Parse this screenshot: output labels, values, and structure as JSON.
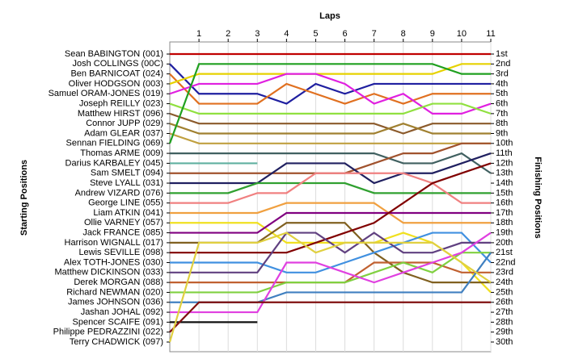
{
  "chart_data": {
    "type": "lap",
    "x_label": "Laps",
    "y_label": "Starting Positions",
    "y2_label": "Finishing Positions",
    "x": [
      0,
      1,
      2,
      3,
      4,
      5,
      6,
      7,
      8,
      9,
      10,
      11
    ],
    "xlim": [
      0,
      11
    ],
    "xticks": [
      1,
      2,
      3,
      4,
      5,
      6,
      7,
      8,
      9,
      10,
      11
    ],
    "ylim": [
      1,
      30
    ],
    "reverse_y": true,
    "grid": true,
    "yticks": [
      {
        "value": 1,
        "label": "1st"
      },
      {
        "value": 2,
        "label": "2nd"
      },
      {
        "value": 3,
        "label": "3rd"
      },
      {
        "value": 4,
        "label": "4th"
      },
      {
        "value": 5,
        "label": "5th"
      },
      {
        "value": 6,
        "label": "6th"
      },
      {
        "value": 7,
        "label": "7th"
      },
      {
        "value": 8,
        "label": "8th"
      },
      {
        "value": 9,
        "label": "9th"
      },
      {
        "value": 10,
        "label": "10th"
      },
      {
        "value": 11,
        "label": "11th"
      },
      {
        "value": 12,
        "label": "12th"
      },
      {
        "value": 13,
        "label": "13th"
      },
      {
        "value": 14,
        "label": "14th"
      },
      {
        "value": 15,
        "label": "15th"
      },
      {
        "value": 16,
        "label": "16th"
      },
      {
        "value": 17,
        "label": "17th"
      },
      {
        "value": 18,
        "label": "18th"
      },
      {
        "value": 19,
        "label": "19th"
      },
      {
        "value": 20,
        "label": "20th"
      },
      {
        "value": 21,
        "label": "21st"
      },
      {
        "value": 22,
        "label": "22nd"
      },
      {
        "value": 23,
        "label": "23rd"
      },
      {
        "value": 24,
        "label": "24th"
      },
      {
        "value": 25,
        "label": "25th"
      },
      {
        "value": 26,
        "label": "26th"
      },
      {
        "value": 27,
        "label": "27th"
      },
      {
        "value": 28,
        "label": "28th"
      },
      {
        "value": 29,
        "label": "29th"
      },
      {
        "value": 30,
        "label": "30th"
      }
    ],
    "series": [
      {
        "name": "Sean BABINGTON (001)",
        "color": "#c00000",
        "values": [
          1,
          1,
          1,
          1,
          1,
          1,
          1,
          1,
          1,
          1,
          1,
          1
        ]
      },
      {
        "name": "Josh COLLINGS (00C)",
        "color": "#1f1fa0",
        "values": [
          2,
          5,
          5,
          5,
          6,
          4,
          5,
          4,
          4,
          4,
          4,
          4
        ]
      },
      {
        "name": "Ben BARNICOAT (024)",
        "color": "#e07020",
        "values": [
          3,
          6,
          6,
          6,
          4,
          5,
          6,
          5,
          6,
          5,
          5,
          5
        ]
      },
      {
        "name": "Oliver HODGSON (003)",
        "color": "#e6d200",
        "values": [
          4,
          3,
          3,
          3,
          3,
          3,
          3,
          3,
          3,
          3,
          2,
          2
        ]
      },
      {
        "name": "Samuel ORAM-JONES (019)",
        "color": "#e020e0",
        "values": [
          5,
          4,
          4,
          4,
          3,
          3,
          4,
          6,
          5,
          7,
          7,
          6
        ]
      },
      {
        "name": "Joseph REILLY (023)",
        "color": "#90e040",
        "values": [
          6,
          7,
          7,
          7,
          7,
          7,
          7,
          7,
          7,
          6,
          6,
          7
        ]
      },
      {
        "name": "Matthew HIRST (096)",
        "color": "#8b5a2b",
        "values": [
          7,
          8,
          8,
          8,
          8,
          8,
          8,
          8,
          9,
          8,
          8,
          8
        ]
      },
      {
        "name": "Connor JUPP (029)",
        "color": "#a08030",
        "values": [
          8,
          9,
          9,
          9,
          9,
          9,
          9,
          9,
          8,
          9,
          9,
          9
        ]
      },
      {
        "name": "Adam GLEAR (037)",
        "color": "#c0a040",
        "values": [
          9,
          10,
          10,
          10,
          10,
          10,
          10,
          10,
          10,
          10,
          10,
          10
        ]
      },
      {
        "name": "Sennan FIELDING (069)",
        "color": "#20a020",
        "values": [
          10,
          2,
          2,
          2,
          2,
          2,
          2,
          2,
          2,
          2,
          3,
          3
        ]
      },
      {
        "name": "Thomas ARME (009)",
        "color": "#406060",
        "values": [
          11,
          11,
          11,
          11,
          11,
          11,
          11,
          11,
          12,
          12,
          11,
          13
        ]
      },
      {
        "name": "Darius KARBALEY (045)",
        "color": "#60b0a0",
        "values": [
          12,
          12,
          12,
          12,
          null,
          null,
          null,
          null,
          null,
          null,
          null,
          null
        ]
      },
      {
        "name": "Sam SMELT (094)",
        "color": "#a0522d",
        "values": [
          13,
          13,
          13,
          13,
          13,
          13,
          13,
          12,
          11,
          11,
          10,
          10
        ]
      },
      {
        "name": "Steve LYALL (031)",
        "color": "#202060",
        "values": [
          14,
          14,
          14,
          14,
          12,
          12,
          12,
          14,
          13,
          13,
          12,
          11
        ]
      },
      {
        "name": "Andrew VIZARD (076)",
        "color": "#30a030",
        "values": [
          15,
          15,
          15,
          14,
          14,
          14,
          14,
          15,
          15,
          15,
          15,
          15
        ]
      },
      {
        "name": "George LINE (055)",
        "color": "#f08080",
        "values": [
          16,
          16,
          16,
          15,
          15,
          13,
          13,
          13,
          13,
          14,
          16,
          16
        ]
      },
      {
        "name": "Liam ATKIN (041)",
        "color": "#f0a040",
        "values": [
          17,
          17,
          17,
          17,
          16,
          16,
          16,
          16,
          18,
          18,
          18,
          18
        ]
      },
      {
        "name": "Ollie VARNEY (057)",
        "color": "#f0e020",
        "values": [
          18,
          18,
          18,
          18,
          20,
          20,
          20,
          20,
          19,
          20,
          22,
          25
        ]
      },
      {
        "name": "Jack FRANCE (085)",
        "color": "#800080",
        "values": [
          19,
          19,
          19,
          19,
          17,
          17,
          17,
          17,
          17,
          17,
          17,
          17
        ]
      },
      {
        "name": "Harrison WIGNALL (017)",
        "color": "#806020",
        "values": [
          20,
          20,
          20,
          20,
          18,
          18,
          18,
          21,
          23,
          24,
          24,
          24
        ]
      },
      {
        "name": "Lewis SEVILLE (098)",
        "color": "#800000",
        "values": [
          21,
          21,
          21,
          21,
          21,
          20,
          19,
          18,
          16,
          14,
          13,
          12
        ]
      },
      {
        "name": "Alex TOTH-JONES (030)",
        "color": "#4090e0",
        "values": [
          22,
          22,
          22,
          22,
          23,
          23,
          22,
          21,
          20,
          19,
          19,
          22
        ]
      },
      {
        "name": "Matthew DICKINSON (033)",
        "color": "#604080",
        "values": [
          23,
          23,
          23,
          23,
          19,
          19,
          21,
          19,
          21,
          21,
          20,
          20
        ]
      },
      {
        "name": "Derek MORGAN (088)",
        "color": "#c06030",
        "values": [
          24,
          24,
          24,
          24,
          24,
          24,
          24,
          22,
          22,
          22,
          23,
          23
        ]
      },
      {
        "name": "Richard NEWMAN (020)",
        "color": "#80d040",
        "values": [
          25,
          25,
          25,
          25,
          24,
          24,
          24,
          23,
          22,
          23,
          21,
          21
        ]
      },
      {
        "name": "James JOHNSON (036)",
        "color": "#4080c0",
        "values": [
          26,
          26,
          26,
          26,
          25,
          25,
          25,
          25,
          25,
          25,
          25,
          21
        ]
      },
      {
        "name": "Jashan JOHAL (092)",
        "color": "#e040e0",
        "values": [
          27,
          27,
          27,
          27,
          22,
          22,
          23,
          24,
          23,
          22,
          21,
          19
        ]
      },
      {
        "name": "Spencer SCAIFE (091)",
        "color": "#101010",
        "values": [
          28,
          28,
          28,
          28,
          null,
          null,
          null,
          null,
          null,
          null,
          null,
          null
        ]
      },
      {
        "name": "Philippe PEDRAZZINI (022)",
        "color": "#801010",
        "values": [
          29,
          26,
          26,
          26,
          26,
          26,
          26,
          26,
          26,
          26,
          26,
          26
        ]
      },
      {
        "name": "Terry CHADWICK (097)",
        "color": "#e0d040",
        "values": [
          30,
          20,
          20,
          20,
          19,
          21,
          20,
          20,
          20,
          20,
          22,
          24
        ]
      }
    ]
  }
}
